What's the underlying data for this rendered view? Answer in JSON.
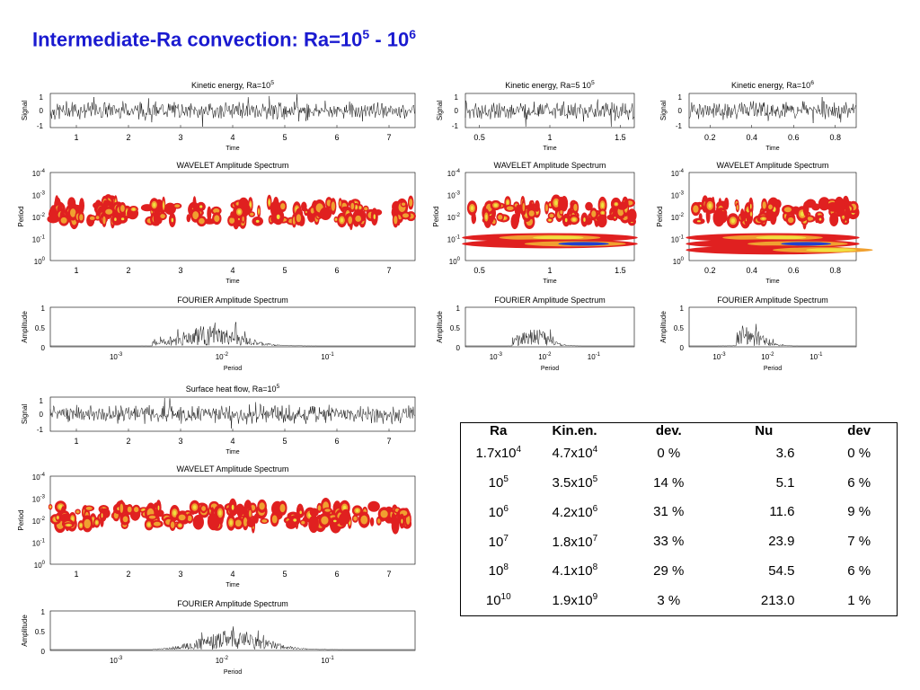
{
  "title": {
    "main": "Intermediate-Ra convection: Ra=10",
    "exp1": "5",
    "mid": " - 10",
    "exp2": "6"
  },
  "colors": {
    "title": "#1a1ad0",
    "wavelet_red": "#e02020",
    "wavelet_orange": "#f0a030",
    "wavelet_yellow": "#f0e040",
    "wavelet_green": "#40c060",
    "wavelet_blue": "#2040d0",
    "trace": "#000000"
  },
  "panels": {
    "p1": {
      "ts_title": "Kinetic energy, Ra=10",
      "ts_exp": "5",
      "ts_ylabel": "Signal",
      "ts_xlabel": "Time",
      "ts_yticks": [
        "1",
        "0",
        "-1"
      ],
      "ts_xticks": [
        "1",
        "2",
        "3",
        "4",
        "5",
        "6",
        "7"
      ],
      "wav_title": "WAVELET Amplitude Spectrum",
      "wav_ylabel": "Period",
      "wav_xlabel": "Time",
      "wav_yticks": [
        {
          "b": "10",
          "e": "-4"
        },
        {
          "b": "10",
          "e": "-3"
        },
        {
          "b": "10",
          "e": "-2"
        },
        {
          "b": "10",
          "e": "-1"
        },
        {
          "b": "10",
          "e": "0"
        }
      ],
      "four_title": "FOURIER Amplitude Spectrum",
      "four_ylabel": "Amplitude",
      "four_xlabel": "Period",
      "four_yticks": [
        "1",
        "0.5",
        "0"
      ],
      "four_xticks": [
        {
          "b": "10",
          "e": "-3"
        },
        {
          "b": "10",
          "e": "-2"
        },
        {
          "b": "10",
          "e": "-1"
        }
      ]
    },
    "p2": {
      "ts_title": "Kinetic energy, Ra=5 10",
      "ts_exp": "5",
      "ts_xticks": [
        "0.5",
        "1",
        "1.5"
      ]
    },
    "p3": {
      "ts_title": "Kinetic energy, Ra=10",
      "ts_exp": "6",
      "ts_xticks": [
        "0.2",
        "0.4",
        "0.6",
        "0.8"
      ]
    },
    "p4": {
      "ts_title": "Surface heat flow, Ra=10",
      "ts_exp": "5"
    }
  },
  "table": {
    "headers": [
      "Ra",
      "Kin.en.",
      "dev.",
      "Nu",
      "dev"
    ],
    "rows": [
      {
        "ra_b": "1.7x10",
        "ra_e": "4",
        "ke_b": "4.7x10",
        "ke_e": "4",
        "dev": "0 %",
        "nu": "3.6",
        "dev2": "0 %"
      },
      {
        "ra_b": "10",
        "ra_e": "5",
        "ke_b": "3.5x10",
        "ke_e": "5",
        "dev": "14 %",
        "nu": "5.1",
        "dev2": "6 %"
      },
      {
        "ra_b": "10",
        "ra_e": "6",
        "ke_b": "4.2x10",
        "ke_e": "6",
        "dev": "31 %",
        "nu": "11.6",
        "dev2": "9 %"
      },
      {
        "ra_b": "10",
        "ra_e": "7",
        "ke_b": "1.8x10",
        "ke_e": "7",
        "dev": "33 %",
        "nu": "23.9",
        "dev2": "7 %"
      },
      {
        "ra_b": "10",
        "ra_e": "8",
        "ke_b": "4.1x10",
        "ke_e": "8",
        "dev": "29 %",
        "nu": "54.5",
        "dev2": "6 %"
      },
      {
        "ra_b": "10",
        "ra_e": "10",
        "ke_b": "1.9x10",
        "ke_e": "9",
        "dev": "3 %",
        "nu": "213.0",
        "dev2": "1 %"
      }
    ]
  },
  "chart_data": {
    "type": "table",
    "columns": [
      "Ra",
      "Kin.en.",
      "dev.",
      "Nu",
      "dev"
    ],
    "rows": [
      [
        "1.7x10^4",
        "4.7x10^4",
        "0 %",
        3.6,
        "0 %"
      ],
      [
        "10^5",
        "3.5x10^5",
        "14 %",
        5.1,
        "6 %"
      ],
      [
        "10^6",
        "4.2x10^6",
        "31 %",
        11.6,
        "9 %"
      ],
      [
        "10^7",
        "1.8x10^7",
        "33 %",
        23.9,
        "7 %"
      ],
      [
        "10^8",
        "4.1x10^8",
        "29 %",
        54.5,
        "6 %"
      ],
      [
        "10^10",
        "1.9x10^9",
        "3 %",
        213.0,
        "1 %"
      ]
    ],
    "plots": [
      {
        "name": "Kinetic energy, Ra=10^5",
        "type": "line",
        "xlabel": "Time",
        "ylabel": "Signal",
        "xlim": [
          0.5,
          7.5
        ],
        "ylim": [
          -1,
          1
        ]
      },
      {
        "name": "Kinetic energy, Ra=5 10^5",
        "type": "line",
        "xlabel": "Time",
        "ylabel": "Signal",
        "xlim": [
          0.4,
          1.6
        ],
        "ylim": [
          -1,
          1
        ]
      },
      {
        "name": "Kinetic energy, Ra=10^6",
        "type": "line",
        "xlabel": "Time",
        "ylabel": "Signal",
        "xlim": [
          0.1,
          0.9
        ],
        "ylim": [
          -1,
          1
        ]
      },
      {
        "name": "Surface heat flow, Ra=10^5",
        "type": "line",
        "xlabel": "Time",
        "ylabel": "Signal",
        "xlim": [
          0.5,
          7.5
        ],
        "ylim": [
          -1,
          1
        ]
      },
      {
        "name": "WAVELET Amplitude Spectrum",
        "type": "heatmap",
        "xlabel": "Time",
        "ylabel": "Period",
        "yscale": "log",
        "ylim": [
          0.0001,
          1
        ]
      },
      {
        "name": "FOURIER Amplitude Spectrum",
        "type": "line",
        "xlabel": "Period",
        "ylabel": "Amplitude",
        "xscale": "log",
        "ylim": [
          0,
          1
        ]
      }
    ]
  }
}
